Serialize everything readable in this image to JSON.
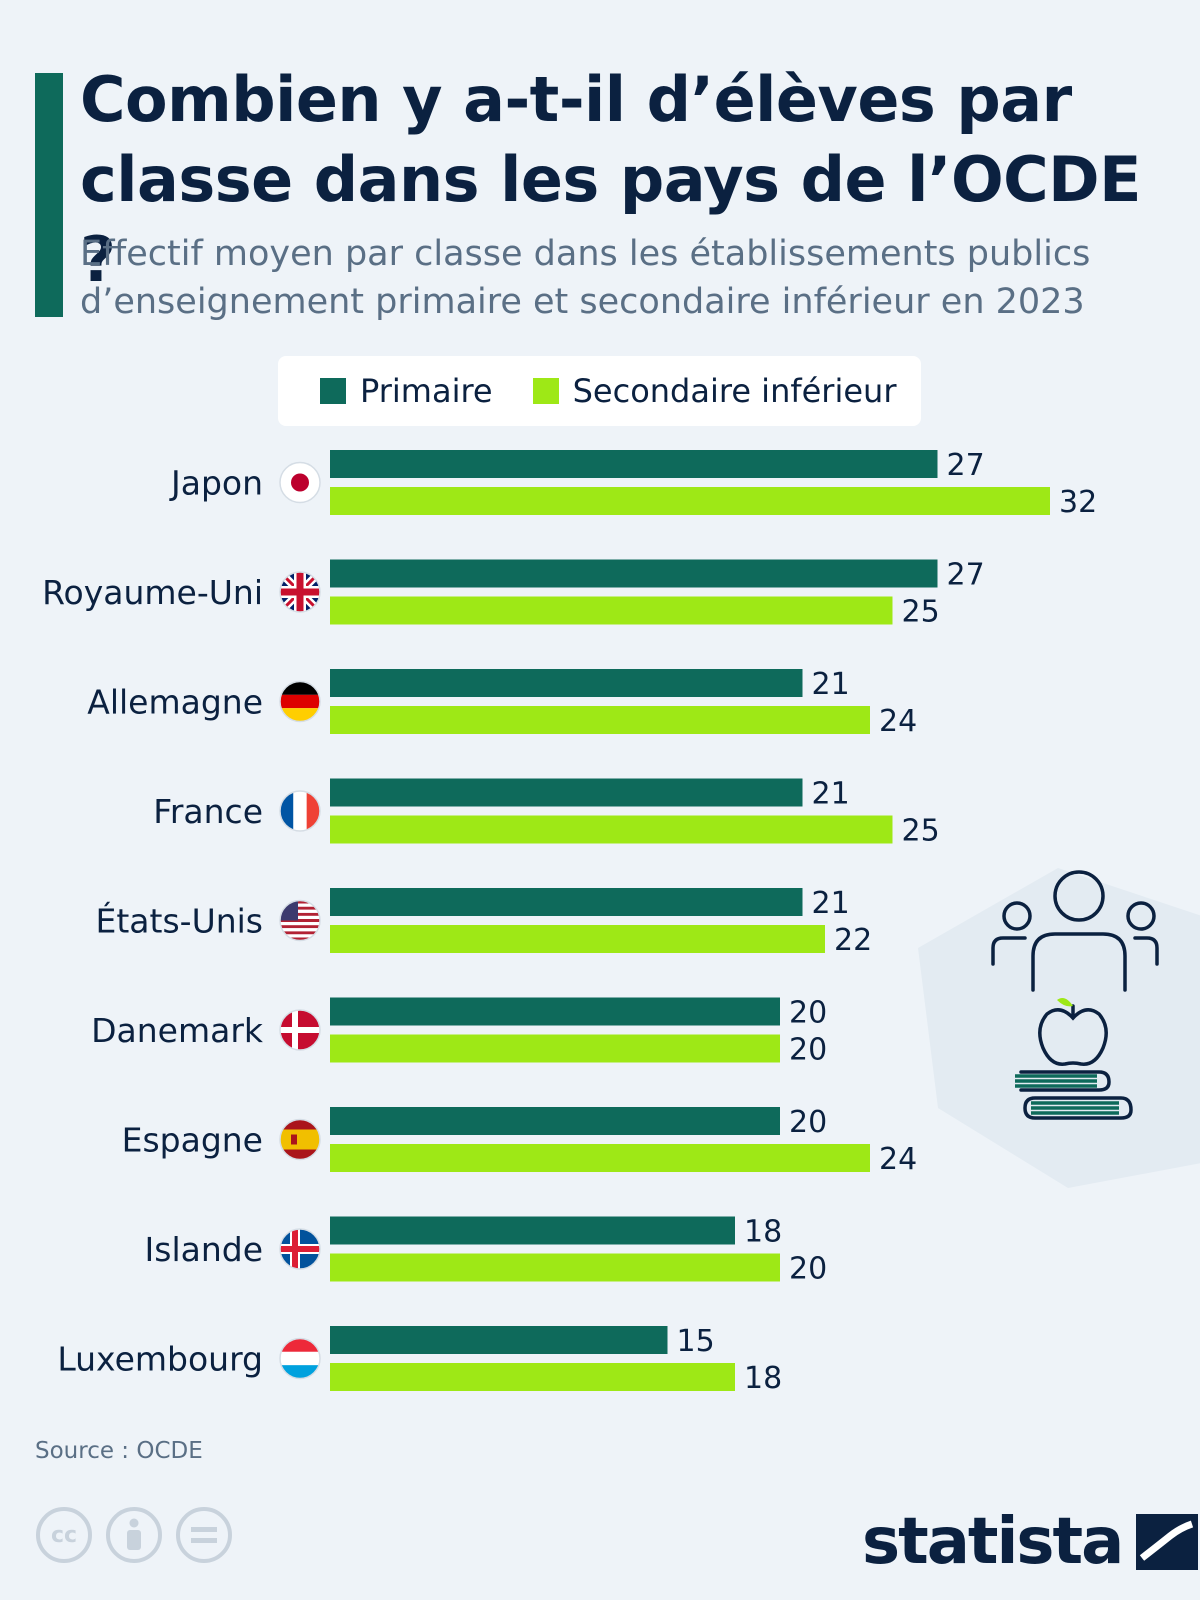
{
  "header": {
    "title": "Combien y a-t-il d’élèves par classe dans les pays de l’OCDE ?",
    "subtitle": "Effectif moyen par classe dans les établissements publics d’enseignement primaire et secondaire inférieur en 2023"
  },
  "legend": {
    "primary": "Primaire",
    "secondary": "Secondaire inférieur"
  },
  "colors": {
    "accent": "#0e6a5b",
    "primary": "#0e6a5b",
    "secondary": "#9ee816",
    "text": "#0b2140"
  },
  "chart_data": {
    "type": "bar",
    "orientation": "horizontal",
    "categories": [
      "Japon",
      "Royaume-Uni",
      "Allemagne",
      "France",
      "États-Unis",
      "Danemark",
      "Espagne",
      "Islande",
      "Luxembourg"
    ],
    "flags": [
      "japan-flag-icon",
      "uk-flag-icon",
      "germany-flag-icon",
      "france-flag-icon",
      "usa-flag-icon",
      "denmark-flag-icon",
      "spain-flag-icon",
      "iceland-flag-icon",
      "luxembourg-flag-icon"
    ],
    "series": [
      {
        "name": "Primaire",
        "values": [
          27,
          27,
          21,
          21,
          21,
          20,
          20,
          18,
          15
        ]
      },
      {
        "name": "Secondaire inférieur",
        "values": [
          32,
          25,
          24,
          25,
          22,
          20,
          24,
          20,
          18
        ]
      }
    ],
    "xlim": [
      0,
      32
    ],
    "grid": false,
    "legend_position": "top"
  },
  "footer": {
    "source": "Source : OCDE",
    "brand": "statista",
    "license_icons": [
      "cc-icon",
      "attribution-icon",
      "no-derivatives-icon"
    ]
  }
}
